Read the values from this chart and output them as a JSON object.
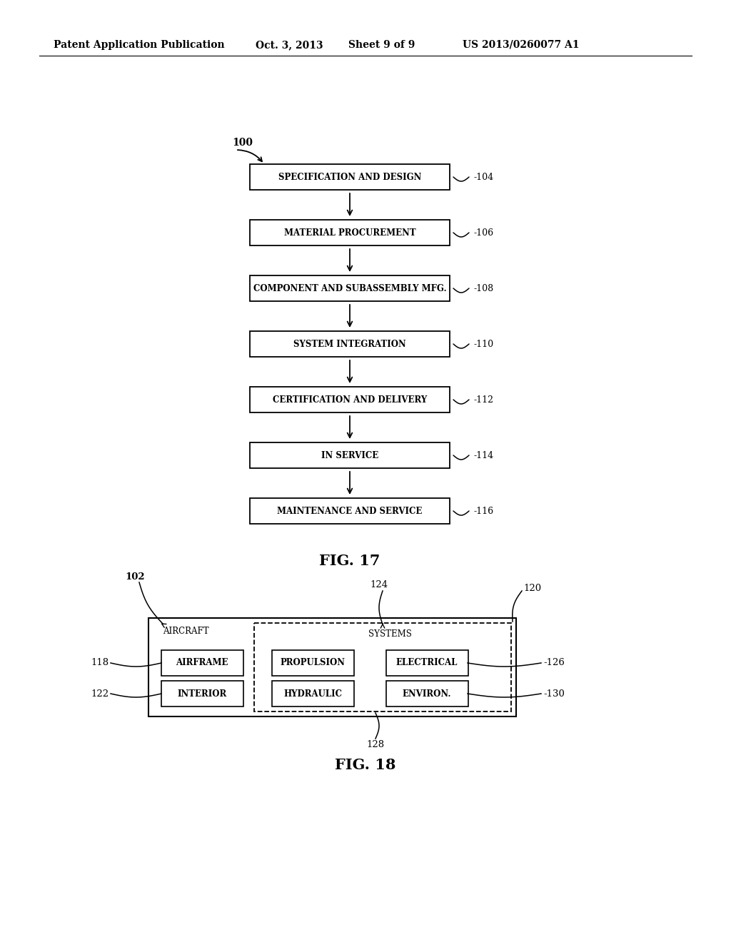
{
  "bg_color": "#ffffff",
  "header_text": "Patent Application Publication",
  "header_date": "Oct. 3, 2013",
  "header_sheet": "Sheet 9 of 9",
  "header_patent": "US 2013/0260077 A1",
  "fig17_label": "FIG. 17",
  "fig18_label": "FIG. 18",
  "flowchart_boxes": [
    {
      "label": "SPECIFICATION AND DESIGN",
      "ref": "104"
    },
    {
      "label": "MATERIAL PROCUREMENT",
      "ref": "106"
    },
    {
      "label": "COMPONENT AND SUBASSEMBLY MFG.",
      "ref": "108"
    },
    {
      "label": "SYSTEM INTEGRATION",
      "ref": "110"
    },
    {
      "label": "CERTIFICATION AND DELIVERY",
      "ref": "112"
    },
    {
      "label": "IN SERVICE",
      "ref": "114"
    },
    {
      "label": "MAINTENANCE AND SERVICE",
      "ref": "116"
    }
  ],
  "cells_row0": [
    "AIRFRAME",
    "PROPULSION",
    "ELECTRICAL"
  ],
  "cells_row1": [
    "INTERIOR",
    "HYDRAULIC",
    "ENVIRON."
  ]
}
